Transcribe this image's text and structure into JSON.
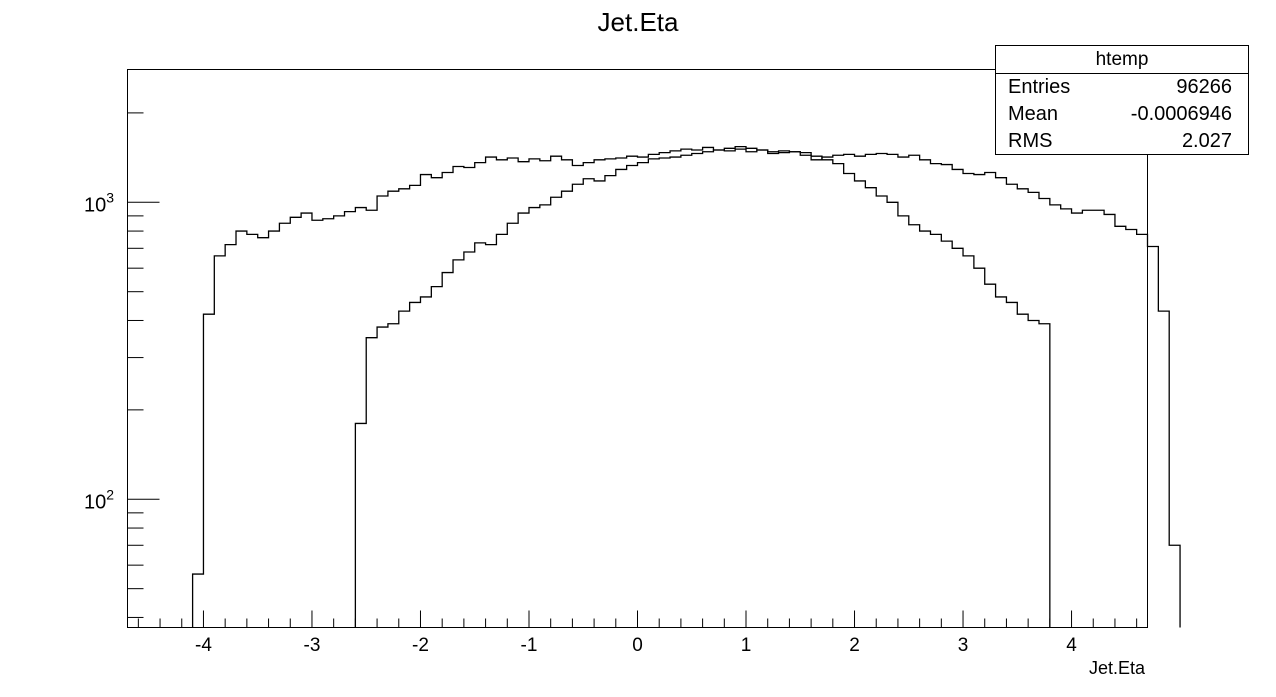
{
  "chart_data": {
    "type": "histogram",
    "title": "Jet.Eta",
    "xlabel": "Jet.Eta",
    "ylabel": "",
    "xlim": [
      -4.7,
      4.7
    ],
    "ylim": [
      37,
      2800
    ],
    "y_scale": "log",
    "x_ticks": [
      -4,
      -3,
      -2,
      -1,
      0,
      1,
      2,
      3,
      4
    ],
    "x_tick_labels": [
      "-4",
      "-3",
      "-2",
      "-1",
      "0",
      "1",
      "2",
      "3",
      "4"
    ],
    "y_tick_labels": [
      {
        "value": 1000,
        "base": "10",
        "exp": "3"
      },
      {
        "value": 100,
        "base": "10",
        "exp": "2"
      }
    ],
    "grid": false,
    "bin_width": 0.1,
    "series": [
      {
        "x_start": -4.1,
        "values": [
          56,
          420,
          660,
          720,
          800,
          780,
          760,
          800,
          850,
          890,
          920,
          870,
          880,
          900,
          930,
          960,
          940,
          1050,
          1090,
          1110,
          1140,
          1240,
          1210,
          1260,
          1320,
          1310,
          1360,
          1420,
          1390,
          1410,
          1370,
          1400,
          1380,
          1430,
          1390,
          1330,
          1360,
          1390,
          1400,
          1410,
          1430,
          1420,
          1450,
          1470,
          1490,
          1510,
          1500,
          1530,
          1500,
          1490,
          1510,
          1480,
          1500,
          1460,
          1470,
          1480,
          1440,
          1390,
          1420,
          1440,
          1450,
          1430,
          1450,
          1460,
          1450,
          1420,
          1440,
          1390,
          1350,
          1340,
          1290,
          1250,
          1240,
          1260,
          1210,
          1150,
          1110,
          1080,
          1030,
          980,
          950,
          920,
          940,
          940,
          910,
          830,
          810,
          780,
          710,
          430,
          70
        ]
      },
      {
        "x_start": -2.6,
        "values": [
          180,
          350,
          380,
          390,
          430,
          460,
          480,
          520,
          580,
          640,
          680,
          730,
          720,
          780,
          850,
          920,
          960,
          980,
          1040,
          1090,
          1150,
          1200,
          1180,
          1230,
          1290,
          1330,
          1360,
          1400,
          1410,
          1420,
          1440,
          1460,
          1480,
          1500,
          1520,
          1540,
          1520,
          1500,
          1480,
          1490,
          1480,
          1470,
          1430,
          1390,
          1350,
          1250,
          1180,
          1120,
          1050,
          1000,
          900,
          840,
          800,
          780,
          740,
          700,
          660,
          600,
          530,
          480,
          460,
          420,
          400,
          390
        ]
      }
    ]
  },
  "stats": {
    "name": "htemp",
    "rows": [
      {
        "label": "Entries",
        "value": "96266"
      },
      {
        "label": "Mean",
        "value": "-0.0006946"
      },
      {
        "label": "RMS",
        "value": "2.027"
      }
    ]
  }
}
